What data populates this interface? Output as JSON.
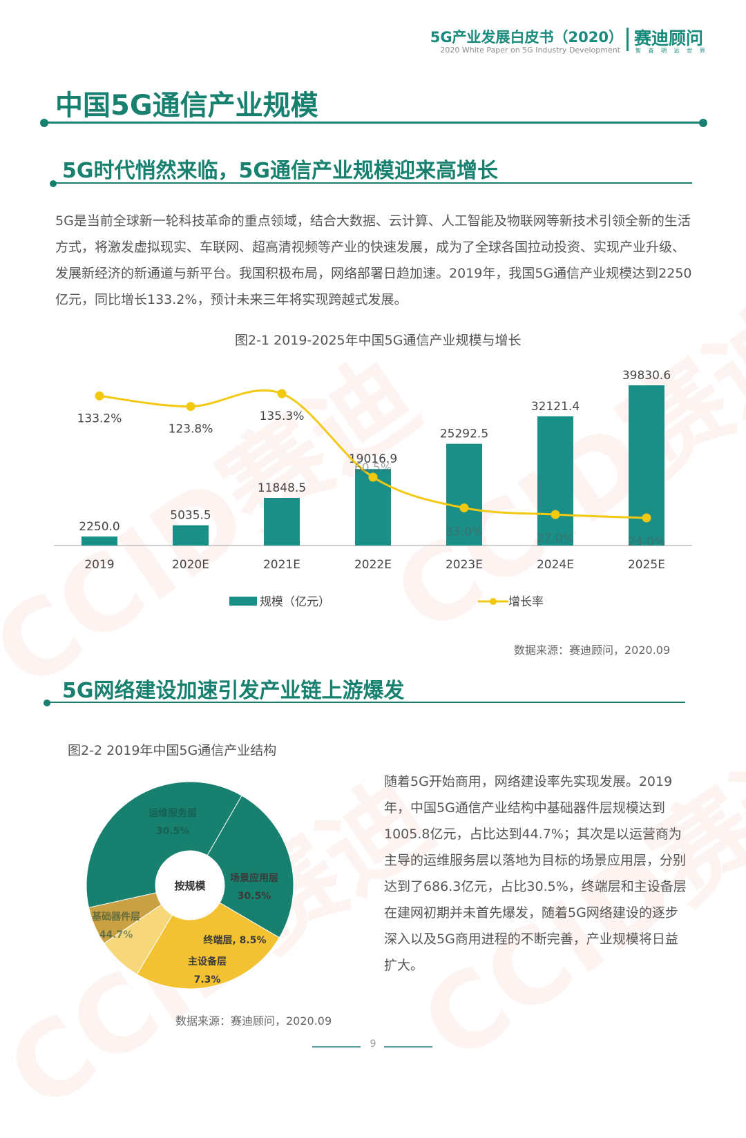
{
  "header": {
    "title": "5G产业发展白皮书（2020）",
    "subtitle": "2020 White Paper on 5G Industry Development",
    "brand": "赛迪顾问",
    "brand_sub": "智 奋 明 远 世 界"
  },
  "section_title": "中国5G通信产业规模",
  "subsection1": "5G时代悄然来临，5G通信产业规模迎来高增长",
  "paragraph1": "5G是当前全球新一轮科技革命的重点领域，结合大数据、云计算、人工智能及物联网等新技术引领全新的生活方式，将激发虚拟现实、车联网、超高清视频等产业的快速发展，成为了全球各国拉动投资、实现产业升级、发展新经济的新通道与新平台。我国积极布局，网络部署日趋加速。2019年，我国5G通信产业规模达到2250亿元，同比增长133.2%，预计未来三年将实现跨越式发展。",
  "figure1": {
    "caption": "图2-1  2019-2025年中国5G通信产业规模与增长",
    "source": "数据来源：赛迪顾问，2020.09"
  },
  "subsection2": "5G网络建设加速引发产业链上游爆发",
  "figure2": {
    "caption": "图2-2  2019年中国5G通信产业结构",
    "source": "数据来源：赛迪顾问，2020.09"
  },
  "paragraph2": "随着5G开始商用，网络建设率先实现发展。2019年，中国5G通信产业结构中基础器件层规模达到1005.8亿元，占比达到44.7%；其次是以运营商为主导的运维服务层以落地为目标的场景应用层，分别达到了686.3亿元，占比30.5%，终端层和主设备层在建网初期并未首先爆发，随着5G网络建设的逐步深入以及5G商用进程的不断完善，产业规模将日益扩大。",
  "page_number": "9",
  "watermark": "CCID赛迪",
  "colors": {
    "teal": "#17806f",
    "bar": "#1a8f87",
    "line": "#f2c811"
  },
  "chart_data": [
    {
      "type": "bar",
      "categories": [
        "2019",
        "2020E",
        "2021E",
        "2022E",
        "2023E",
        "2024E",
        "2025E"
      ],
      "series": [
        {
          "name": "规模（亿元）",
          "type": "bar",
          "values": [
            2250.0,
            5035.5,
            11848.5,
            19016.9,
            25292.5,
            32121.4,
            39830.6
          ],
          "labels": [
            "2250.0",
            "5035.5",
            "11848.5",
            "19016.9",
            "25292.5",
            "32121.4",
            "39830.6"
          ]
        },
        {
          "name": "增长率",
          "type": "line",
          "values": [
            133.2,
            123.8,
            135.3,
            60.5,
            33.0,
            27.0,
            24.0
          ],
          "labels": [
            "133.2%",
            "123.8%",
            "135.3%",
            "60.5%",
            "33.0%",
            "27.0%",
            "24.0%"
          ]
        }
      ],
      "legend_position": "bottom",
      "grid": false
    },
    {
      "type": "pie",
      "center_label": "按规模",
      "slices": [
        {
          "label": "运维服务层",
          "value": 30.5,
          "value_label": "30.5%"
        },
        {
          "label": "场景应用层",
          "value": 30.5,
          "value_label": "30.5%"
        },
        {
          "label": "终端层",
          "value": 8.5,
          "value_label": "8.5%"
        },
        {
          "label": "主设备层",
          "value": 7.3,
          "value_label": "7.3%"
        },
        {
          "label": "基础器件层",
          "value": 44.7,
          "value_label": "44.7%"
        }
      ]
    }
  ]
}
